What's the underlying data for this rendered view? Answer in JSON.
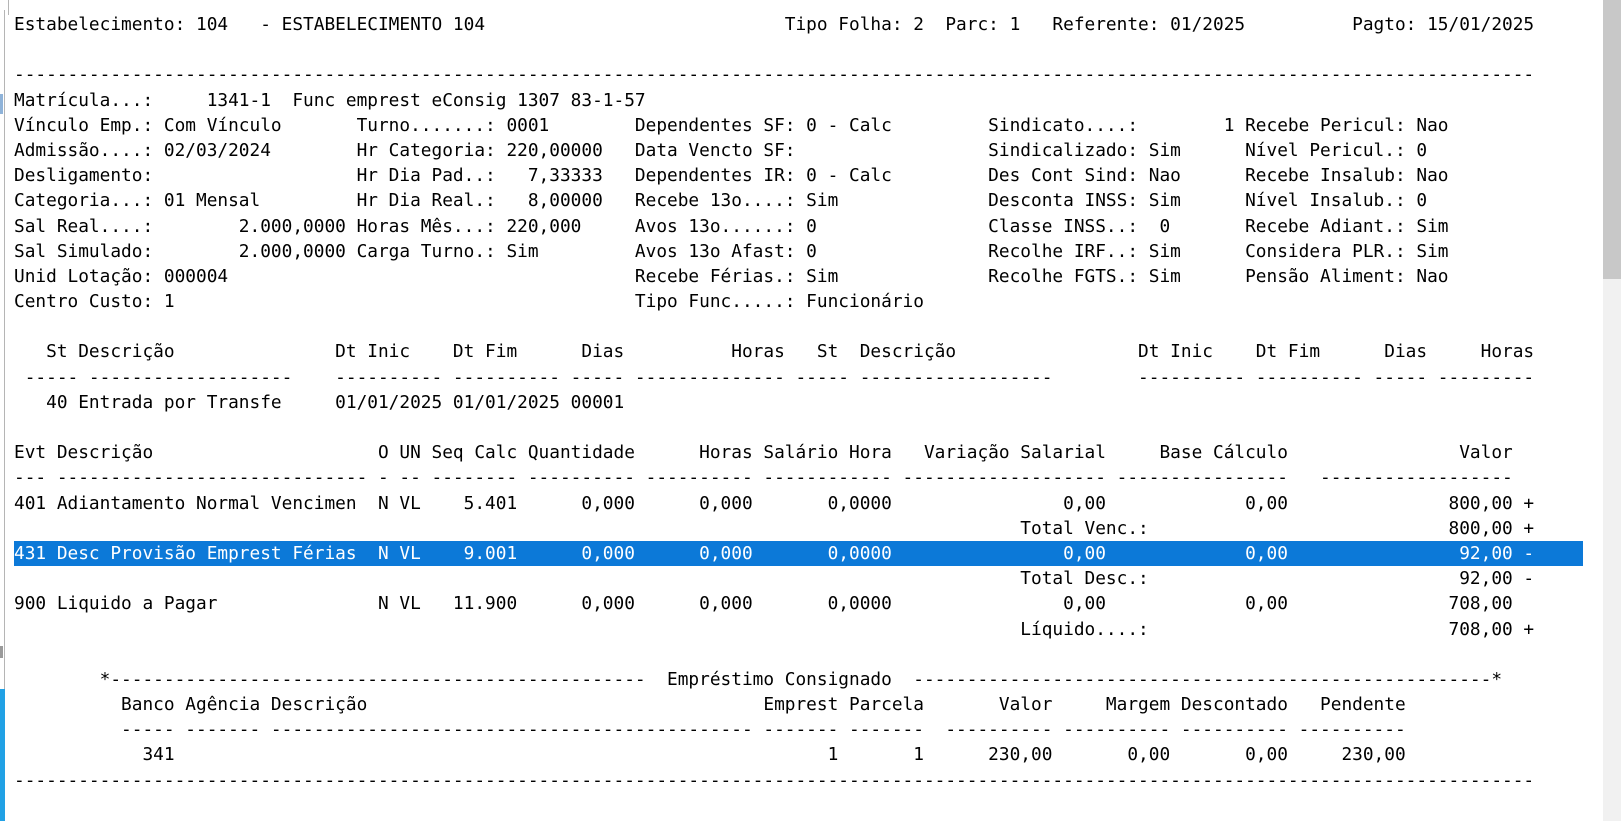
{
  "colors": {
    "selection_bg": "#0c79d8",
    "selection_text": "#ffffff",
    "left_accent": "#21a1e5",
    "scrollbar_track": "#f1f1f1",
    "scrollbar_thumb": "#c8c8c8",
    "window_border": "#b5b5b5",
    "text": "#000000",
    "background": "#ffffff"
  },
  "report": {
    "lines": [
      {
        "name": "page-header",
        "interactable": false,
        "segs": [
          [
            0,
            "Estabelecimento: 104   - ESTABELECIMENTO 104"
          ],
          [
            72,
            "Tipo Folha: 2"
          ],
          [
            87,
            "Parc: 1"
          ],
          [
            97,
            "Referente: 01/2025"
          ],
          [
            125,
            "Pagto: 15/01/2025"
          ]
        ]
      },
      {
        "name": "blank-line",
        "interactable": false,
        "segs": []
      },
      {
        "name": "separator-top",
        "interactable": false,
        "segs": [
          [
            0,
            {
              "r": "-",
              "n": 142
            }
          ]
        ]
      },
      {
        "name": "employee-id-line",
        "interactable": false,
        "segs": [
          [
            0,
            "Matrícula...:"
          ],
          [
            18,
            "1341-1"
          ],
          [
            26,
            "Func emprest eConsig 1307 83-1-57"
          ]
        ]
      },
      {
        "name": "employee-info-line-1",
        "interactable": false,
        "segs": [
          [
            0,
            "Vínculo Emp.: Com Vínculo"
          ],
          [
            32,
            "Turno.......: 0001"
          ],
          [
            58,
            "Dependentes SF: 0 - Calc"
          ],
          [
            91,
            "Sindicato....:"
          ],
          [
            113,
            "1"
          ],
          [
            115,
            "Recebe Pericul: Nao"
          ]
        ]
      },
      {
        "name": "employee-info-line-2",
        "interactable": false,
        "segs": [
          [
            0,
            "Admissão....: 02/03/2024"
          ],
          [
            32,
            "Hr Categoria: 220,00000"
          ],
          [
            58,
            "Data Vencto SF:"
          ],
          [
            91,
            "Sindicalizado: Sim"
          ],
          [
            115,
            "Nível Pericul.: 0"
          ]
        ]
      },
      {
        "name": "employee-info-line-3",
        "interactable": false,
        "segs": [
          [
            0,
            "Desligamento:"
          ],
          [
            32,
            "Hr Dia Pad..:"
          ],
          [
            48,
            "7,33333"
          ],
          [
            58,
            "Dependentes IR: 0 - Calc"
          ],
          [
            91,
            "Des Cont Sind: Nao"
          ],
          [
            115,
            "Recebe Insalub: Nao"
          ]
        ]
      },
      {
        "name": "employee-info-line-4",
        "interactable": false,
        "segs": [
          [
            0,
            "Categoria...: 01 Mensal"
          ],
          [
            32,
            "Hr Dia Real.:"
          ],
          [
            48,
            "8,00000"
          ],
          [
            58,
            "Recebe 13o....: Sim"
          ],
          [
            91,
            "Desconta INSS: Sim"
          ],
          [
            115,
            "Nível Insalub.: 0"
          ]
        ]
      },
      {
        "name": "employee-info-line-5",
        "interactable": false,
        "segs": [
          [
            0,
            "Sal Real....:"
          ],
          [
            21,
            "2.000,0000"
          ],
          [
            32,
            "Horas Mês...: 220,000"
          ],
          [
            58,
            "Avos 13o......: 0"
          ],
          [
            91,
            "Classe INSS..:"
          ],
          [
            107,
            "0"
          ],
          [
            115,
            "Recebe Adiant.: Sim"
          ]
        ]
      },
      {
        "name": "employee-info-line-6",
        "interactable": false,
        "segs": [
          [
            0,
            "Sal Simulado:"
          ],
          [
            21,
            "2.000,0000"
          ],
          [
            32,
            "Carga Turno.: Sim"
          ],
          [
            58,
            "Avos 13o Afast: 0"
          ],
          [
            91,
            "Recolhe IRF..: Sim"
          ],
          [
            115,
            "Considera PLR.: Sim"
          ]
        ]
      },
      {
        "name": "employee-info-line-7",
        "interactable": false,
        "segs": [
          [
            0,
            "Unid Lotação: 000004"
          ],
          [
            58,
            "Recebe Férias.: Sim"
          ],
          [
            91,
            "Recolhe FGTS.: Sim"
          ],
          [
            115,
            "Pensão Aliment: Nao"
          ]
        ]
      },
      {
        "name": "employee-info-line-8",
        "interactable": false,
        "segs": [
          [
            0,
            "Centro Custo: 1"
          ],
          [
            58,
            "Tipo Func.....: Funcionário"
          ]
        ]
      },
      {
        "name": "blank-line",
        "interactable": false,
        "segs": []
      },
      {
        "name": "situations-header",
        "interactable": false,
        "segs": [
          [
            3,
            "St"
          ],
          [
            6,
            "Descrição"
          ],
          [
            30,
            "Dt Inic"
          ],
          [
            41,
            "Dt Fim"
          ],
          [
            53,
            "Dias"
          ],
          [
            67,
            "Horas"
          ],
          [
            75,
            "St"
          ],
          [
            79,
            "Descrição"
          ],
          [
            105,
            "Dt Inic"
          ],
          [
            116,
            "Dt Fim"
          ],
          [
            128,
            "Dias"
          ],
          [
            137,
            "Horas"
          ]
        ]
      },
      {
        "name": "situations-divider",
        "interactable": false,
        "segs": [
          [
            1,
            {
              "r": "-",
              "n": 5
            }
          ],
          [
            7,
            {
              "r": "-",
              "n": 19
            }
          ],
          [
            30,
            {
              "r": "-",
              "n": 10
            }
          ],
          [
            41,
            {
              "r": "-",
              "n": 10
            }
          ],
          [
            52,
            {
              "r": "-",
              "n": 5
            }
          ],
          [
            58,
            {
              "r": "-",
              "n": 14
            }
          ],
          [
            73,
            {
              "r": "-",
              "n": 5
            }
          ],
          [
            79,
            {
              "r": "-",
              "n": 18
            }
          ],
          [
            105,
            {
              "r": "-",
              "n": 10
            }
          ],
          [
            116,
            {
              "r": "-",
              "n": 10
            }
          ],
          [
            127,
            {
              "r": "-",
              "n": 5
            }
          ],
          [
            133,
            {
              "r": "-",
              "n": 9
            }
          ]
        ]
      },
      {
        "name": "situation-row",
        "interactable": true,
        "segs": [
          [
            3,
            "40"
          ],
          [
            6,
            "Entrada por Transfe"
          ],
          [
            30,
            "01/01/2025"
          ],
          [
            41,
            "01/01/2025"
          ],
          [
            52,
            "00001"
          ]
        ]
      },
      {
        "name": "blank-line",
        "interactable": false,
        "segs": []
      },
      {
        "name": "events-header",
        "interactable": false,
        "segs": [
          [
            0,
            "Evt"
          ],
          [
            4,
            "Descrição"
          ],
          [
            34,
            "O"
          ],
          [
            36,
            "UN"
          ],
          [
            39,
            "Seq Calc"
          ],
          [
            48,
            "Quantidade"
          ],
          [
            64,
            "Horas"
          ],
          [
            70,
            "Salário Hora"
          ],
          [
            85,
            "Variação Salarial"
          ],
          [
            107,
            "Base Cálculo"
          ],
          [
            135,
            "Valor"
          ]
        ]
      },
      {
        "name": "events-divider",
        "interactable": false,
        "segs": [
          [
            0,
            {
              "r": "-",
              "n": 3
            }
          ],
          [
            4,
            {
              "r": "-",
              "n": 29
            }
          ],
          [
            34,
            {
              "r": "-",
              "n": 1
            }
          ],
          [
            36,
            {
              "r": "-",
              "n": 2
            }
          ],
          [
            39,
            {
              "r": "-",
              "n": 8
            }
          ],
          [
            48,
            {
              "r": "-",
              "n": 10
            }
          ],
          [
            59,
            {
              "r": "-",
              "n": 10
            }
          ],
          [
            70,
            {
              "r": "-",
              "n": 12
            }
          ],
          [
            83,
            {
              "r": "-",
              "n": 19
            }
          ],
          [
            103,
            {
              "r": "-",
              "n": 16
            }
          ],
          [
            122,
            {
              "r": "-",
              "n": 18
            }
          ]
        ]
      },
      {
        "name": "event-row-401",
        "interactable": true,
        "segs": [
          [
            0,
            "401"
          ],
          [
            4,
            "Adiantamento Normal Vencimen"
          ],
          [
            34,
            "N"
          ],
          [
            36,
            "VL"
          ],
          [
            42,
            "5.401"
          ],
          [
            53,
            "0,000"
          ],
          [
            64,
            "0,000"
          ],
          [
            76,
            "0,0000"
          ],
          [
            98,
            "0,00"
          ],
          [
            115,
            "0,00"
          ],
          [
            134,
            "800,00"
          ],
          [
            141,
            "+"
          ]
        ]
      },
      {
        "name": "total-vencimentos",
        "interactable": false,
        "segs": [
          [
            94,
            "Total Venc.:"
          ],
          [
            134,
            "800,00"
          ],
          [
            141,
            "+"
          ]
        ]
      },
      {
        "name": "event-row-431",
        "interactable": true,
        "selected": true,
        "segs": [
          [
            0,
            "431"
          ],
          [
            4,
            "Desc Provisão Emprest Férias"
          ],
          [
            34,
            "N"
          ],
          [
            36,
            "VL"
          ],
          [
            42,
            "9.001"
          ],
          [
            53,
            "0,000"
          ],
          [
            64,
            "0,000"
          ],
          [
            76,
            "0,0000"
          ],
          [
            98,
            "0,00"
          ],
          [
            115,
            "0,00"
          ],
          [
            135,
            "92,00"
          ],
          [
            141,
            "-"
          ]
        ]
      },
      {
        "name": "total-descontos",
        "interactable": false,
        "segs": [
          [
            94,
            "Total Desc.:"
          ],
          [
            135,
            "92,00"
          ],
          [
            141,
            "-"
          ]
        ]
      },
      {
        "name": "event-row-900",
        "interactable": true,
        "segs": [
          [
            0,
            "900"
          ],
          [
            4,
            "Liquido a Pagar"
          ],
          [
            34,
            "N"
          ],
          [
            36,
            "VL"
          ],
          [
            41,
            "11.900"
          ],
          [
            53,
            "0,000"
          ],
          [
            64,
            "0,000"
          ],
          [
            76,
            "0,0000"
          ],
          [
            98,
            "0,00"
          ],
          [
            115,
            "0,00"
          ],
          [
            134,
            "708,00"
          ]
        ]
      },
      {
        "name": "total-liquido",
        "interactable": false,
        "segs": [
          [
            94,
            "Líquido....:"
          ],
          [
            134,
            "708,00"
          ],
          [
            141,
            "+"
          ]
        ]
      },
      {
        "name": "blank-line",
        "interactable": false,
        "segs": []
      },
      {
        "name": "loan-section-title",
        "interactable": false,
        "segs": [
          [
            8,
            "*"
          ],
          [
            9,
            {
              "r": "-",
              "n": 50
            }
          ],
          [
            61,
            "Empréstimo Consignado"
          ],
          [
            84,
            {
              "r": "-",
              "n": 54
            }
          ],
          [
            138,
            "*"
          ]
        ]
      },
      {
        "name": "loan-table-header",
        "interactable": false,
        "segs": [
          [
            10,
            "Banco"
          ],
          [
            16,
            "Agência"
          ],
          [
            24,
            "Descrição"
          ],
          [
            70,
            "Emprest"
          ],
          [
            78,
            "Parcela"
          ],
          [
            92,
            "Valor"
          ],
          [
            102,
            "Margem"
          ],
          [
            109,
            "Descontado"
          ],
          [
            122,
            "Pendente"
          ]
        ]
      },
      {
        "name": "loan-table-divider",
        "interactable": false,
        "segs": [
          [
            10,
            {
              "r": "-",
              "n": 5
            }
          ],
          [
            16,
            {
              "r": "-",
              "n": 7
            }
          ],
          [
            24,
            {
              "r": "-",
              "n": 45
            }
          ],
          [
            70,
            {
              "r": "-",
              "n": 7
            }
          ],
          [
            78,
            {
              "r": "-",
              "n": 7
            }
          ],
          [
            87,
            {
              "r": "-",
              "n": 10
            }
          ],
          [
            98,
            {
              "r": "-",
              "n": 10
            }
          ],
          [
            109,
            {
              "r": "-",
              "n": 10
            }
          ],
          [
            120,
            {
              "r": "-",
              "n": 10
            }
          ]
        ]
      },
      {
        "name": "loan-row",
        "interactable": true,
        "segs": [
          [
            12,
            "341"
          ],
          [
            76,
            "1"
          ],
          [
            84,
            "1"
          ],
          [
            91,
            "230,00"
          ],
          [
            104,
            "0,00"
          ],
          [
            115,
            "0,00"
          ],
          [
            124,
            "230,00"
          ]
        ]
      },
      {
        "name": "separator-bottom",
        "interactable": false,
        "segs": [
          [
            0,
            {
              "r": "-",
              "n": 142
            }
          ]
        ]
      }
    ]
  }
}
